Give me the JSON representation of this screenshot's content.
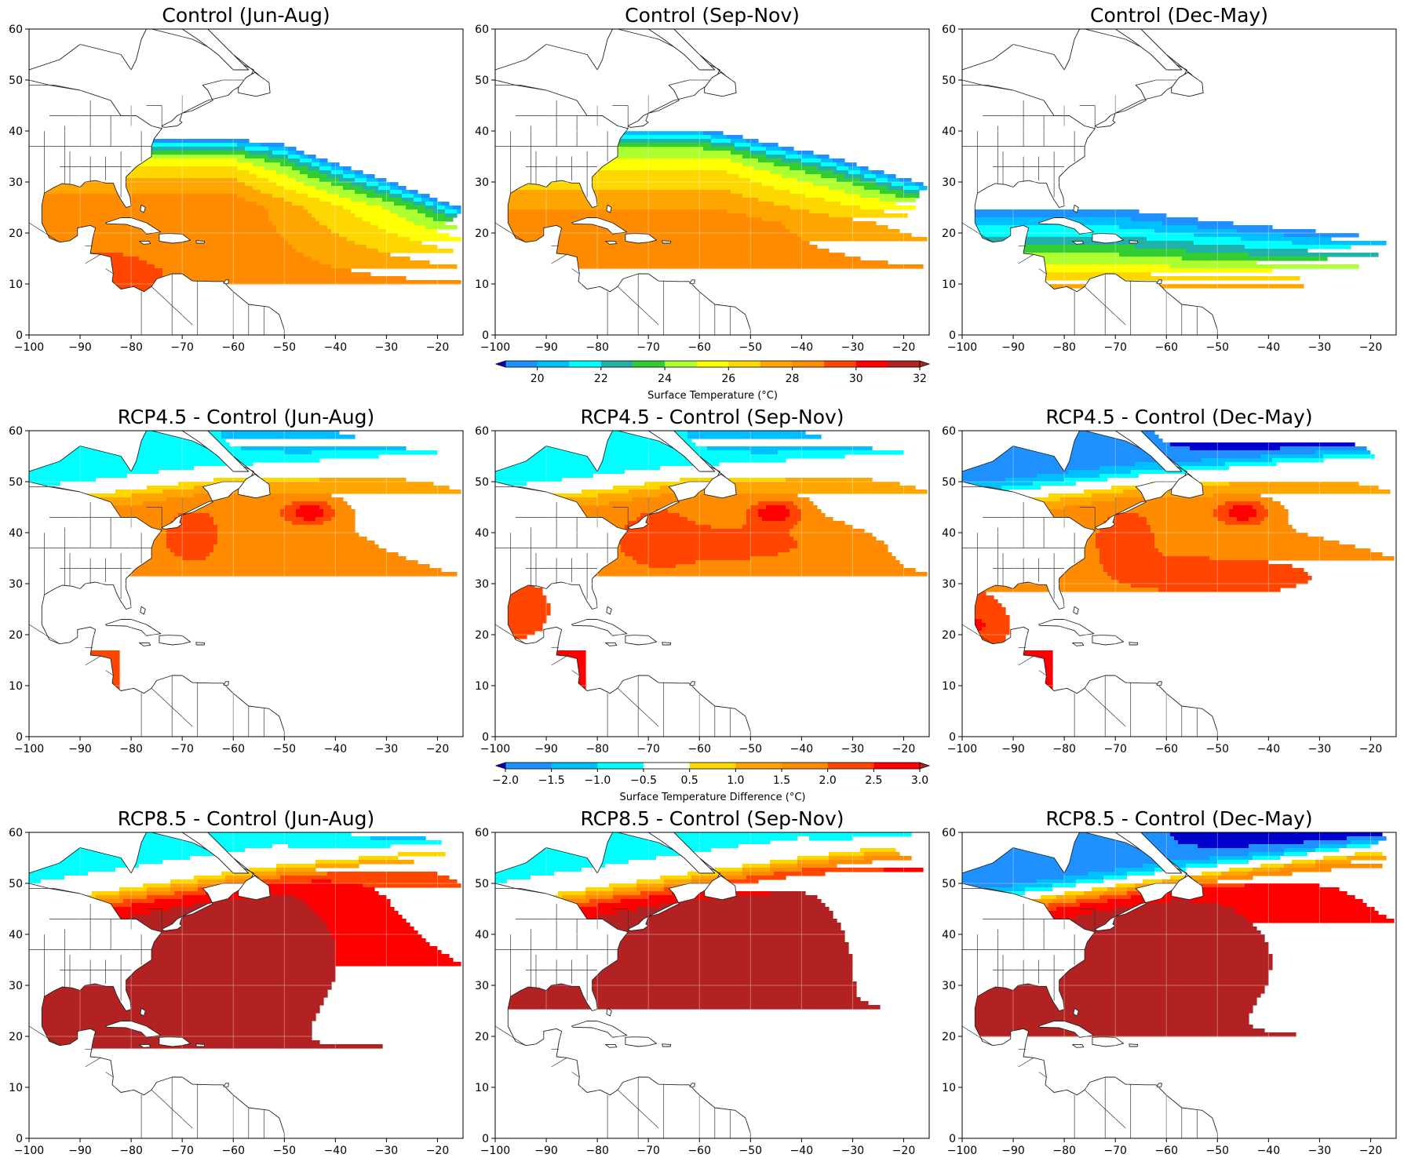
{
  "panels": [
    {
      "title": "Control (Jun-Aug)",
      "kind": "control",
      "season": "jja"
    },
    {
      "title": "Control (Sep-Nov)",
      "kind": "control",
      "season": "son"
    },
    {
      "title": "Control (Dec-May)",
      "kind": "control",
      "season": "djf"
    },
    {
      "title": "RCP4.5 - Control (Jun-Aug)",
      "kind": "rcp45",
      "season": "jja"
    },
    {
      "title": "RCP4.5 - Control (Sep-Nov)",
      "kind": "rcp45",
      "season": "son"
    },
    {
      "title": "RCP4.5 - Control (Dec-May)",
      "kind": "rcp45",
      "season": "djf"
    },
    {
      "title": "RCP8.5 - Control (Jun-Aug)",
      "kind": "rcp85",
      "season": "jja"
    },
    {
      "title": "RCP8.5 - Control (Sep-Nov)",
      "kind": "rcp85",
      "season": "son"
    },
    {
      "title": "RCP8.5 - Control (Dec-May)",
      "kind": "rcp85",
      "season": "djf"
    }
  ],
  "axes": {
    "lon_range": [
      -100,
      -15
    ],
    "lat_range": [
      0,
      60
    ],
    "x_ticks": [
      "−100",
      "−90",
      "−80",
      "−70",
      "−60",
      "−50",
      "−40",
      "−30",
      "−20"
    ],
    "x_tick_values": [
      -100,
      -90,
      -80,
      -70,
      -60,
      -50,
      -40,
      -30,
      -20
    ],
    "y_ticks": [
      "0",
      "10",
      "20",
      "30",
      "40",
      "50",
      "60"
    ],
    "y_tick_values": [
      0,
      10,
      20,
      30,
      40,
      50,
      60
    ],
    "grid": true
  },
  "colorbars": [
    {
      "label": "Surface Temperature ($^\\circ$C)",
      "label_display": "Surface Temperature (°C)",
      "levels": [
        19,
        20,
        21,
        22,
        23,
        24,
        25,
        26,
        27,
        28,
        29,
        30,
        31,
        32
      ],
      "tick_values": [
        20,
        22,
        24,
        26,
        28,
        30,
        32
      ],
      "tick_labels": [
        "20",
        "22",
        "24",
        "26",
        "28",
        "30",
        "32"
      ],
      "colors": [
        "#0000cd",
        "#1e90ff",
        "#00bfff",
        "#00ffff",
        "#20b2aa",
        "#32cd32",
        "#adff2f",
        "#ffff00",
        "#ffd700",
        "#ffa500",
        "#ff8c00",
        "#ff4500",
        "#ff0000",
        "#b22222"
      ]
    },
    {
      "label": "Surface Temperature Difference ($^\\circ$C)",
      "label_display": "Surface Temperature Difference (°C)",
      "levels": [
        -2.0,
        -1.5,
        -1.0,
        -0.5,
        0.5,
        1.0,
        1.5,
        2.0,
        2.5,
        3.0
      ],
      "tick_values": [
        -2.0,
        -1.5,
        -1.0,
        -0.5,
        0.5,
        1.0,
        1.5,
        2.0,
        2.5,
        3.0
      ],
      "tick_labels": [
        "−2.0",
        "−1.5",
        "−1.0",
        "−0.5",
        "0.5",
        "1.0",
        "1.5",
        "2.0",
        "2.5",
        "3.0"
      ],
      "colors": [
        "#0000cd",
        "#1e90ff",
        "#00bfff",
        "#00ffff",
        "#ffffff",
        "#ffd700",
        "#ffa500",
        "#ff8c00",
        "#ff4500",
        "#ff0000",
        "#b22222"
      ]
    }
  ]
}
